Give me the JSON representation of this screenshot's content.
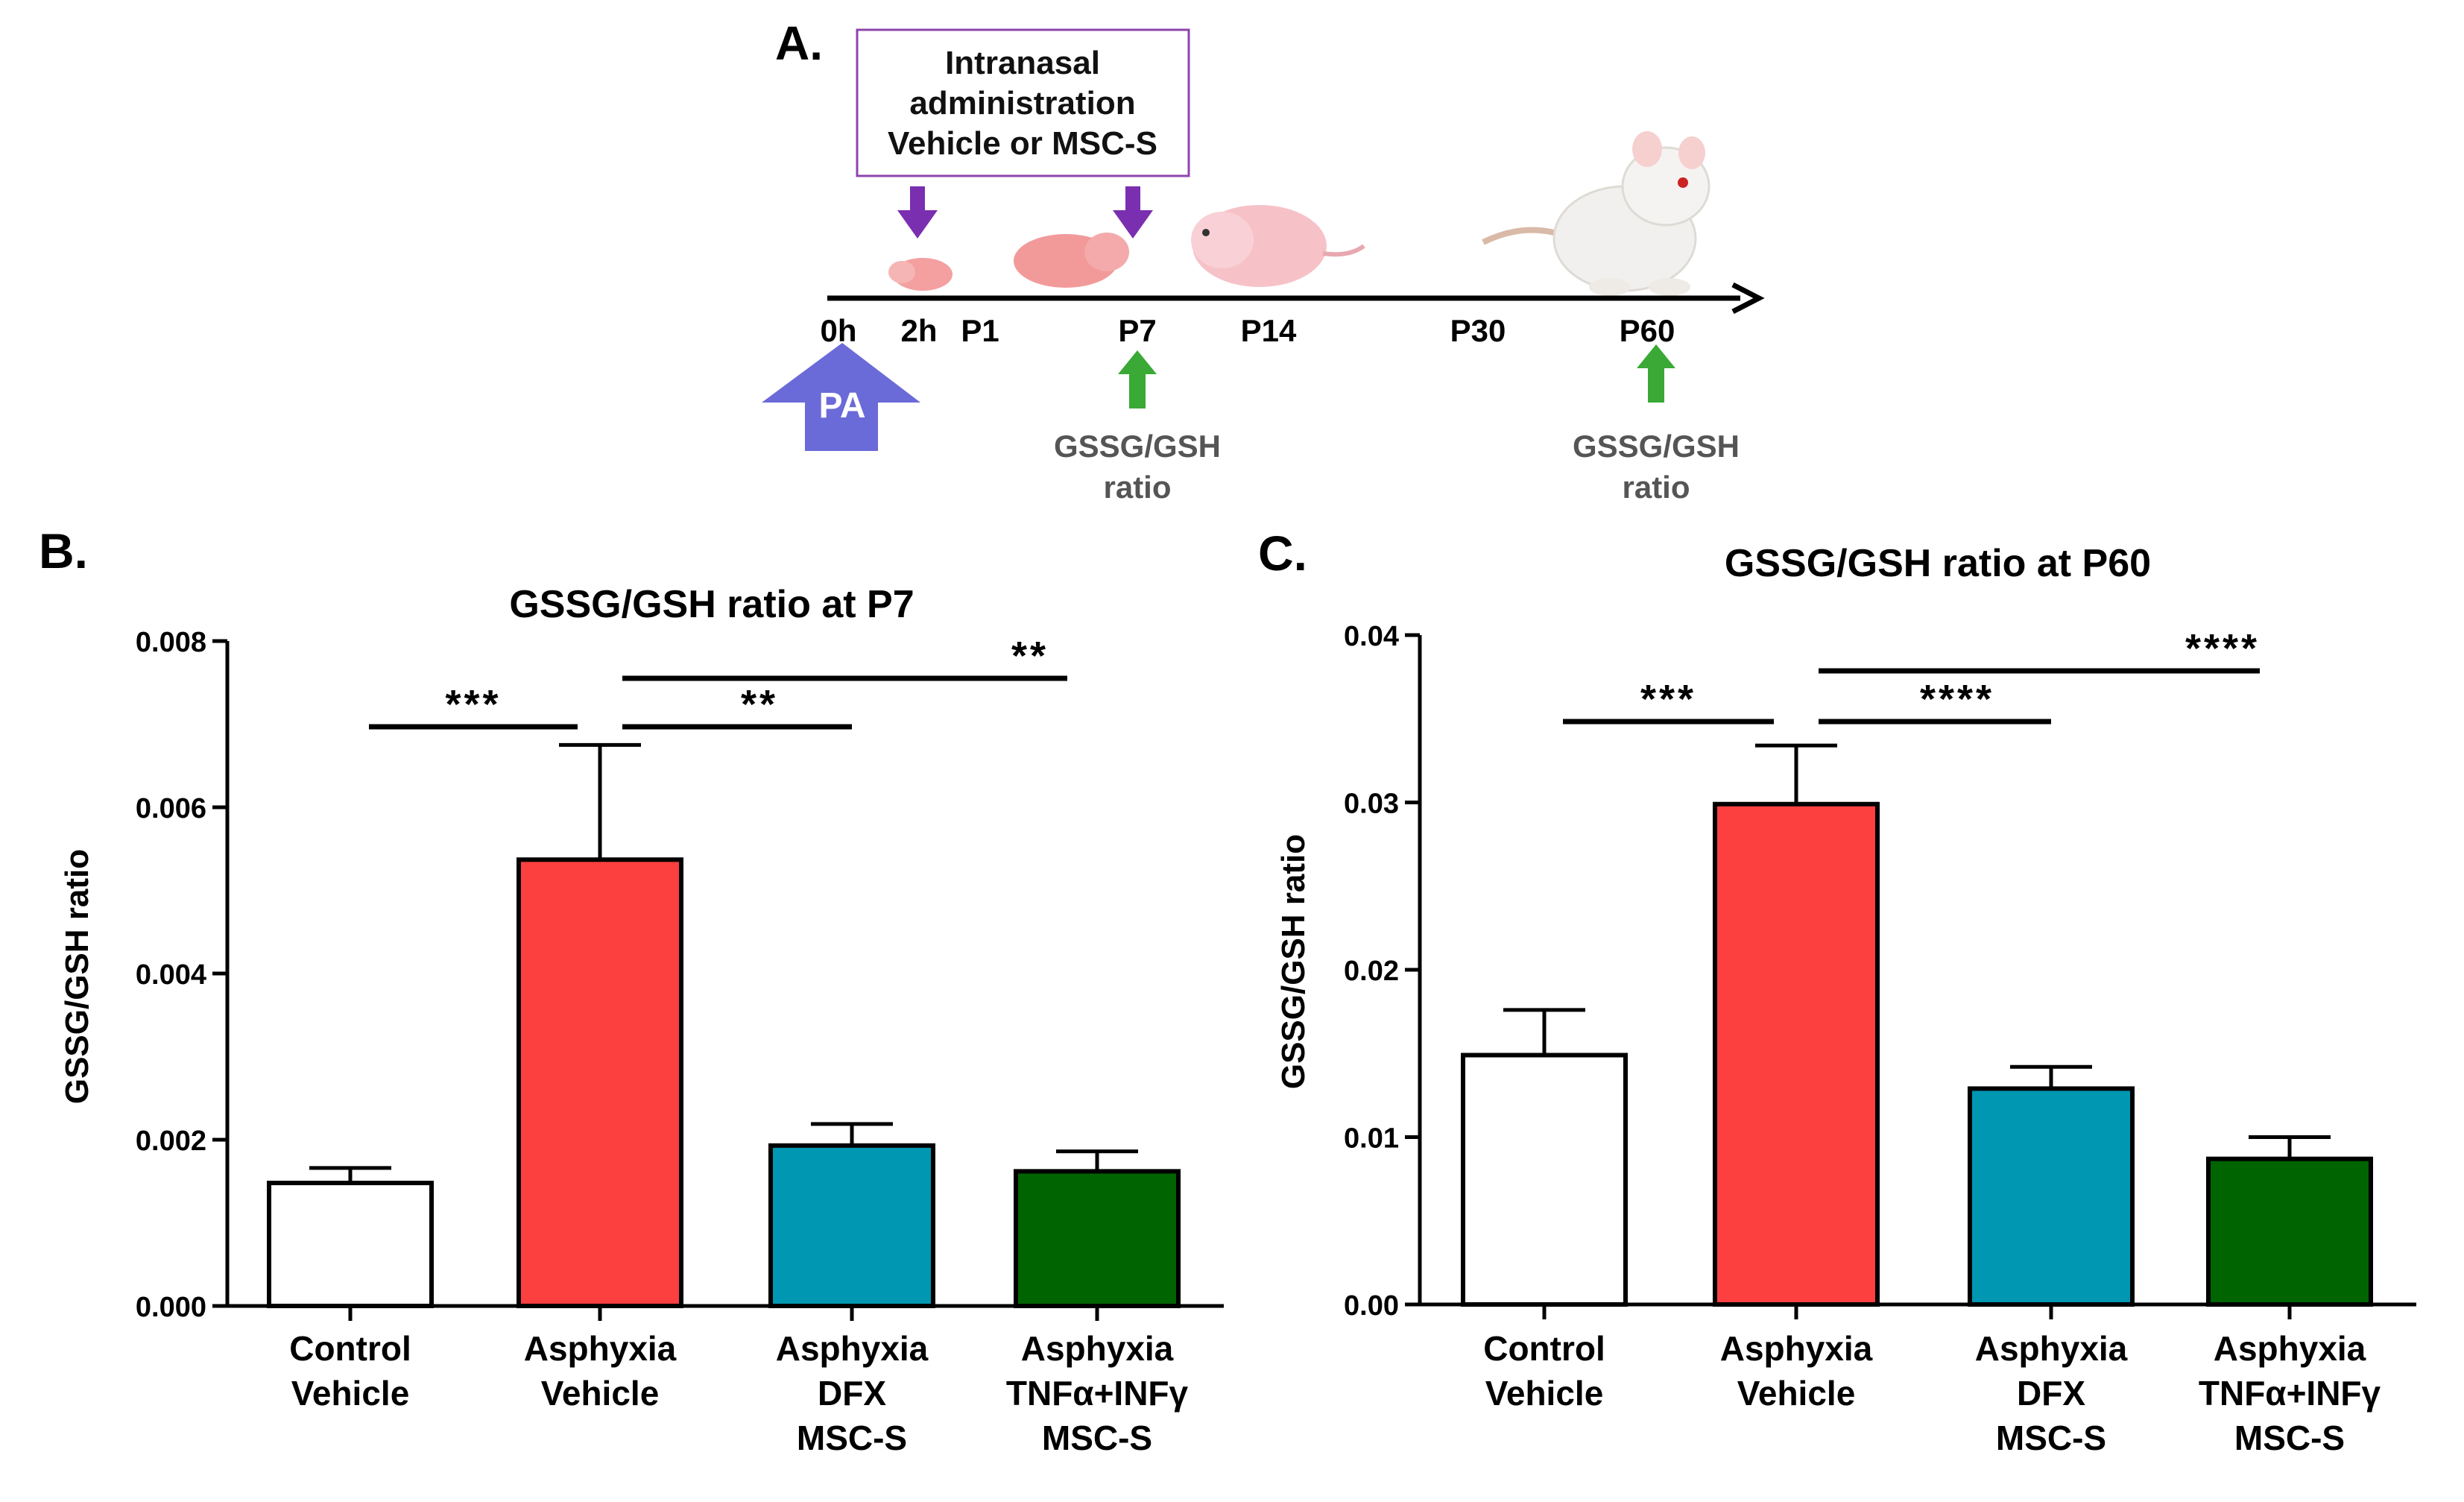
{
  "colors": {
    "control": "#ffffff",
    "asphyxia_vehicle": "#fc3f3f",
    "dfx": "#0097b2",
    "tnf": "#006400",
    "timeline_arrow_purple": "#7a2fb0",
    "pa_arrow": "#6a6ad8",
    "gssg_arrow": "#3aa935",
    "box_border": "#8e44ad",
    "pup_pink": "#f4b0b0",
    "grey_text": "#555555"
  },
  "panelA": {
    "label": "A.",
    "box_line1": "Intranasal",
    "box_line2": "administration",
    "box_line3": "Vehicle or MSC-S",
    "ticks": [
      "0h",
      "2h",
      "P1",
      "P7",
      "P14",
      "P30",
      "P60"
    ],
    "pa_label": "PA",
    "gssg_label_p7_line1": "GSSG/GSH",
    "gssg_label_p7_line2": "ratio",
    "gssg_label_p60_line1": "GSSG/GSH",
    "gssg_label_p60_line2": "ratio"
  },
  "chart_data": [
    {
      "panel": "B.",
      "type": "bar",
      "title": "GSSG/GSH ratio at P7",
      "ylabel": "GSSG/GSH ratio",
      "xlabel": "",
      "ylim": [
        0,
        0.008
      ],
      "yticks": [
        "0.000",
        "0.002",
        "0.004",
        "0.006",
        "0.008"
      ],
      "categories": [
        [
          "Control",
          "Vehicle"
        ],
        [
          "Asphyxia",
          "Vehicle"
        ],
        [
          "Asphyxia",
          "DFX",
          "MSC-S"
        ],
        [
          "Asphyxia",
          "TNFα+INFγ",
          "MSC-S"
        ]
      ],
      "values": [
        0.00148,
        0.00537,
        0.00193,
        0.00162
      ],
      "errors": [
        0.00018,
        0.00138,
        0.00026,
        0.00024
      ],
      "significance": [
        {
          "label": "***",
          "from": 0,
          "to": 1
        },
        {
          "label": "**",
          "from": 1,
          "to": 2
        },
        {
          "label": "**",
          "from": 1,
          "to": 3
        }
      ]
    },
    {
      "panel": "C.",
      "type": "bar",
      "title": "GSSG/GSH ratio at P60",
      "ylabel": "GSSG/GSH ratio",
      "xlabel": "",
      "ylim": [
        0,
        0.04
      ],
      "yticks": [
        "0.00",
        "0.01",
        "0.02",
        "0.03",
        "0.04"
      ],
      "categories": [
        [
          "Control",
          "Vehicle"
        ],
        [
          "Asphyxia",
          "Vehicle"
        ],
        [
          "Asphyxia",
          "DFX",
          "MSC-S"
        ],
        [
          "Asphyxia",
          "TNFα+INFγ",
          "MSC-S"
        ]
      ],
      "values": [
        0.0149,
        0.0299,
        0.0129,
        0.0087
      ],
      "errors": [
        0.0027,
        0.0035,
        0.0013,
        0.0013
      ],
      "significance": [
        {
          "label": "***",
          "from": 0,
          "to": 1
        },
        {
          "label": "****",
          "from": 1,
          "to": 2
        },
        {
          "label": "****",
          "from": 1,
          "to": 3
        }
      ]
    }
  ]
}
